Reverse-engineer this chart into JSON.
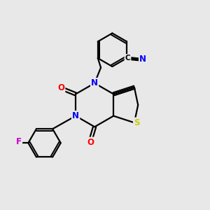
{
  "background_color": "#e8e8e8",
  "bond_color": "#000000",
  "atom_colors": {
    "N": "#0000ff",
    "O": "#ff0000",
    "S": "#cccc00",
    "F": "#cc00cc",
    "CN_N": "#0000ff"
  },
  "figsize": [
    3.0,
    3.0
  ],
  "dpi": 100
}
